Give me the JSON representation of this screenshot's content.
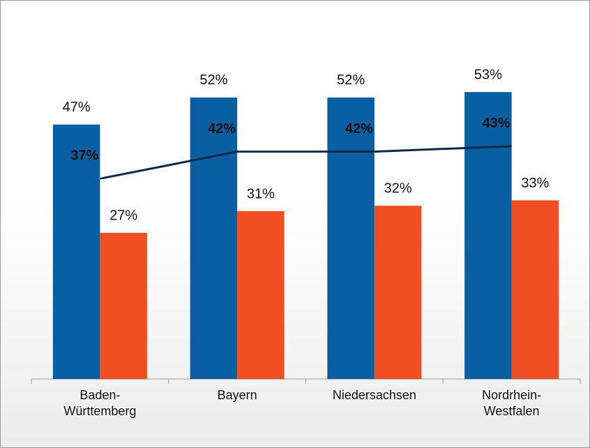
{
  "chart_data": {
    "type": "bar_line",
    "categories": [
      "Baden-Württemberg",
      "Bayern",
      "Niedersachsen",
      "Nordrhein-Westfalen"
    ],
    "series": [
      {
        "type": "bar",
        "color": "#0a5fa3",
        "values": [
          47,
          52,
          52,
          53
        ],
        "value_labels": [
          "47%",
          "52%",
          "52%",
          "53%"
        ]
      },
      {
        "type": "bar",
        "color": "#f04e23",
        "values": [
          27,
          31,
          32,
          33
        ],
        "value_labels": [
          "27%",
          "31%",
          "32%",
          "33%"
        ]
      },
      {
        "type": "line",
        "color": "#0d2a45",
        "values": [
          37,
          42,
          42,
          43
        ],
        "value_labels": [
          "37%",
          "42%",
          "42%",
          "43%"
        ]
      }
    ],
    "ylim": [
      0,
      70
    ]
  }
}
